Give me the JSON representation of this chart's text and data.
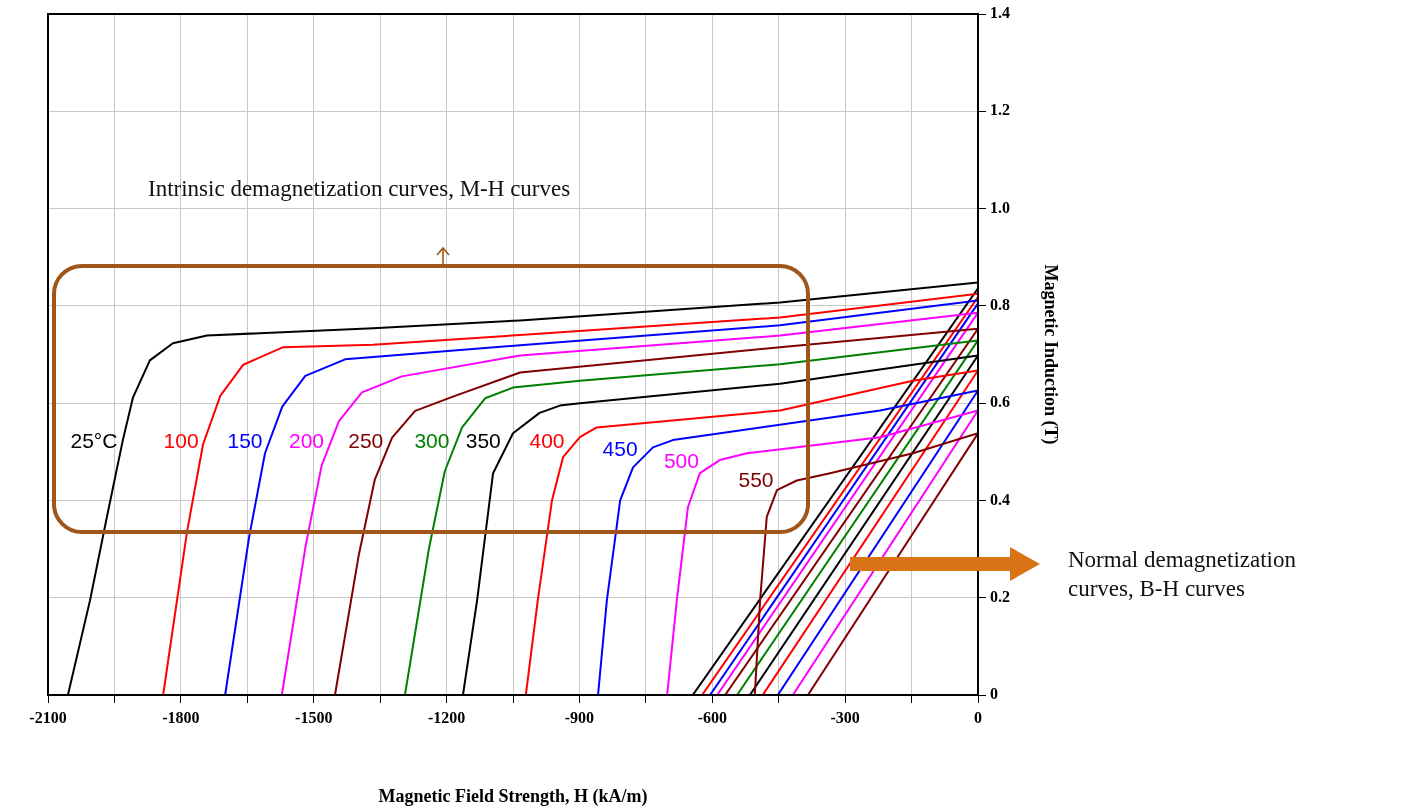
{
  "chart_data": {
    "type": "line",
    "xlabel": "Magnetic Field Strength, H (kA/m)",
    "ylabel": "Magnetic Induction (T)",
    "xlim": [
      -2100,
      0
    ],
    "ylim": [
      0,
      1.4
    ],
    "xticks": [
      -2100,
      {
        "value": -1950,
        "label": null
      },
      -1800,
      {
        "value": -1650,
        "label": null
      },
      -1500,
      {
        "value": -1350,
        "label": null
      },
      -1200,
      {
        "value": -1050,
        "label": null
      },
      -900,
      {
        "value": -750,
        "label": null
      },
      -600,
      {
        "value": -450,
        "label": null
      },
      -300,
      {
        "value": -150,
        "label": null
      },
      0
    ],
    "yticks": [
      0,
      0.2,
      0.4,
      0.6,
      0.8,
      {
        "value": 1,
        "label": "1.0"
      },
      1.2,
      1.4
    ],
    "grid": true,
    "annotations": [
      "Intrinsic demagnetization curves, M-H curves",
      "Normal demagnetization curves, B-H curves"
    ],
    "series": [
      {
        "name": "25°C",
        "color": "#000000",
        "x": [
          -2055,
          -2005,
          -1967,
          -1931,
          -1908,
          -1870,
          -1818,
          -1741,
          -1366,
          -1034,
          -447,
          0
        ],
        "values": [
          0,
          0.195,
          0.366,
          0.524,
          0.612,
          0.688,
          0.723,
          0.739,
          0.754,
          0.77,
          0.807,
          0.848
        ]
      },
      {
        "name": "100",
        "color": "#ff0000",
        "x": [
          -1840,
          -1786,
          -1750,
          -1711,
          -1659,
          -1569,
          -1366,
          -1034,
          -447,
          0
        ],
        "values": [
          0,
          0.336,
          0.515,
          0.615,
          0.679,
          0.715,
          0.72,
          0.74,
          0.776,
          0.825
        ]
      },
      {
        "name": "150",
        "color": "#0000ff",
        "x": [
          -1700,
          -1646,
          -1610,
          -1571,
          -1519,
          -1429,
          -1034,
          -447,
          0
        ],
        "values": [
          0,
          0.324,
          0.497,
          0.593,
          0.656,
          0.69,
          0.719,
          0.76,
          0.811
        ]
      },
      {
        "name": "200",
        "color": "#ff00ff",
        "x": [
          -1572,
          -1518,
          -1482,
          -1443,
          -1391,
          -1301,
          -1034,
          -447,
          0
        ],
        "values": [
          0,
          0.308,
          0.472,
          0.563,
          0.622,
          0.655,
          0.698,
          0.739,
          0.786
        ]
      },
      {
        "name": "250",
        "color": "#800000",
        "x": [
          -1452,
          -1398,
          -1362,
          -1323,
          -1271,
          -1181,
          -1034,
          -447,
          0
        ],
        "values": [
          0,
          0.289,
          0.443,
          0.529,
          0.584,
          0.615,
          0.663,
          0.715,
          0.753
        ]
      },
      {
        "name": "300",
        "color": "#008000",
        "x": [
          -1294,
          -1240,
          -1204,
          -1165,
          -1113,
          -1050,
          -899,
          -447,
          0
        ],
        "values": [
          0,
          0.3,
          0.46,
          0.55,
          0.61,
          0.632,
          0.646,
          0.68,
          0.729
        ]
      },
      {
        "name": "350",
        "color": "#000000",
        "x": [
          -1163,
          -1131,
          -1095,
          -1050,
          -990,
          -944,
          -899,
          -447,
          0
        ],
        "values": [
          0,
          0.195,
          0.456,
          0.538,
          0.58,
          0.595,
          0.6,
          0.64,
          0.698
        ]
      },
      {
        "name": "400",
        "color": "#ff0000",
        "x": [
          -1021,
          -994,
          -962,
          -937,
          -899,
          -861,
          -447,
          -147,
          0
        ],
        "values": [
          0,
          0.195,
          0.4,
          0.489,
          0.53,
          0.55,
          0.585,
          0.646,
          0.667
        ]
      },
      {
        "name": "450",
        "color": "#0000ff",
        "x": [
          -858,
          -838,
          -808,
          -779,
          -734,
          -689,
          -221,
          0
        ],
        "values": [
          0,
          0.195,
          0.4,
          0.468,
          0.509,
          0.524,
          0.585,
          0.626
        ]
      },
      {
        "name": "500",
        "color": "#ff00ff",
        "x": [
          -702,
          -680,
          -655,
          -628,
          -583,
          -522,
          -221,
          0
        ],
        "values": [
          0,
          0.195,
          0.386,
          0.456,
          0.483,
          0.497,
          0.53,
          0.585
        ]
      },
      {
        "name": "550",
        "color": "#800000",
        "x": [
          -504,
          -492,
          -477,
          -454,
          -409,
          -334,
          -147,
          0
        ],
        "values": [
          0,
          0.195,
          0.366,
          0.421,
          0.441,
          0.456,
          0.497,
          0.538
        ]
      },
      {
        "color": "#000000",
        "x": [
          -644,
          0
        ],
        "values": [
          0,
          0.836
        ]
      },
      {
        "color": "#ff0000",
        "x": [
          -623,
          0
        ],
        "values": [
          0,
          0.818
        ]
      },
      {
        "color": "#0000ff",
        "x": [
          -605,
          0
        ],
        "values": [
          0,
          0.805
        ]
      },
      {
        "color": "#ff00ff",
        "x": [
          -589,
          0
        ],
        "values": [
          0,
          0.786
        ]
      },
      {
        "color": "#800000",
        "x": [
          -571,
          0
        ],
        "values": [
          0,
          0.753
        ]
      },
      {
        "color": "#008000",
        "x": [
          -544,
          0
        ],
        "values": [
          0,
          0.729
        ]
      },
      {
        "color": "#000000",
        "x": [
          -515,
          0
        ],
        "values": [
          0,
          0.698
        ]
      },
      {
        "color": "#ff0000",
        "x": [
          -486,
          0
        ],
        "values": [
          0,
          0.667
        ]
      },
      {
        "color": "#0000ff",
        "x": [
          -452,
          0
        ],
        "values": [
          0,
          0.626
        ]
      },
      {
        "color": "#ff00ff",
        "x": [
          -418,
          0
        ],
        "values": [
          0,
          0.585
        ]
      },
      {
        "color": "#800000",
        "x": [
          -384,
          0
        ],
        "values": [
          0,
          0.538
        ]
      }
    ]
  }
}
